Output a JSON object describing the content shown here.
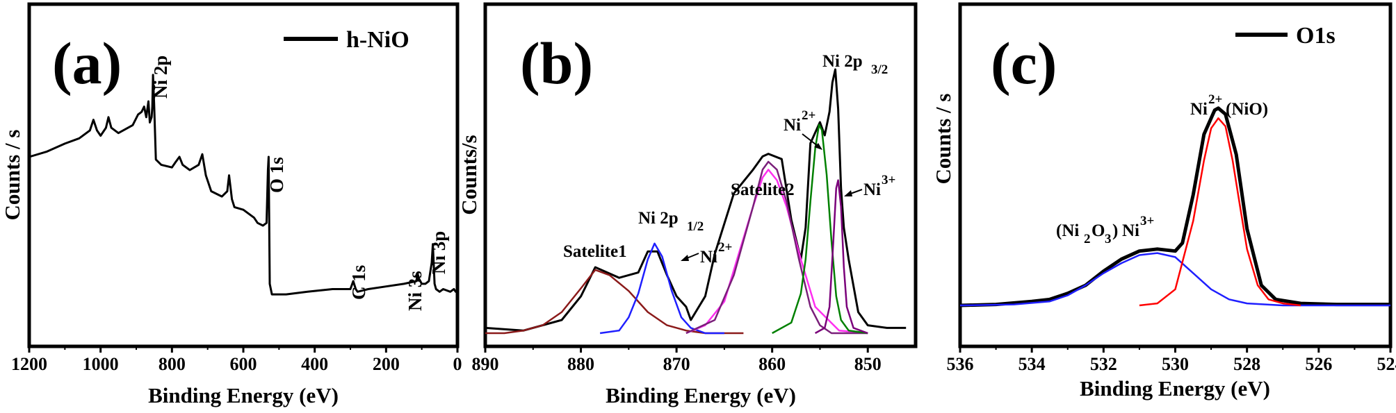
{
  "figure": {
    "panel_a": {
      "letter": "(a)",
      "legend": "h-NiO",
      "xlabel": "Binding Energy (eV)",
      "ylabel": "Counts / s",
      "xticks": [
        "1200",
        "1000",
        "800",
        "600",
        "400",
        "200",
        "0"
      ],
      "annotations": {
        "ni2p": "Ni 2p",
        "o1s": "O 1s",
        "c1s": "C 1s",
        "ni3s": "Ni 3s",
        "ni3p": "Ni 3p"
      }
    },
    "panel_b": {
      "letter": "(b)",
      "xlabel": "Binding Energy (eV)",
      "ylabel": "Counts/s",
      "xticks": [
        "890",
        "880",
        "870",
        "860",
        "850"
      ],
      "annotations": {
        "satelite1": "Satelite1",
        "satelite2": "Satelite2",
        "ni2p12": "Ni 2p",
        "ni2p12_sub": "1/2",
        "ni2p32": "Ni 2p",
        "ni2p32_sub": "3/2",
        "ni": "Ni",
        "sup2": "2+",
        "sup3": "3+"
      }
    },
    "panel_c": {
      "letter": "(c)",
      "legend": "O1s",
      "xlabel": "Binding Energy (eV)",
      "ylabel": "Counts / s",
      "xticks": [
        "536",
        "534",
        "532",
        "530",
        "528",
        "526",
        "524"
      ],
      "annotations": {
        "ni": "Ni",
        "sup2": "2+",
        "sup3": "3+",
        "nio": "(NiO)",
        "ni2o3_open": "(Ni",
        "ni2o3_sub": "2",
        "ni2o3_o": "O",
        "ni2o3_sub2": "3",
        "ni2o3_close": ")"
      }
    }
  },
  "chart_data": [
    {
      "type": "line",
      "panel": "(a)",
      "xlabel": "Binding Energy (eV)",
      "ylabel": "Counts / s",
      "xlim": [
        1200,
        0
      ],
      "ylim": [
        0,
        100
      ],
      "x_reversed": true,
      "series": [
        {
          "name": "h-NiO",
          "color": "#000000",
          "x": [
            1200,
            1150,
            1100,
            1060,
            1030,
            1020,
            1010,
            1000,
            985,
            978,
            970,
            950,
            910,
            895,
            885,
            878,
            872,
            866,
            862,
            857,
            855,
            853,
            850,
            845,
            830,
            800,
            790,
            779,
            770,
            750,
            725,
            715,
            705,
            690,
            660,
            645,
            640,
            632,
            625,
            600,
            570,
            560,
            545,
            535,
            531,
            529,
            526,
            520,
            480,
            420,
            350,
            300,
            292,
            285,
            280,
            250,
            200,
            150,
            115,
            112,
            108,
            100,
            90,
            80,
            72,
            69,
            67,
            64,
            60,
            50,
            40,
            20,
            10,
            5,
            0
          ],
          "y": [
            63,
            65,
            68,
            70,
            73,
            77,
            73,
            71,
            74,
            78,
            74,
            72,
            75,
            79,
            80,
            82,
            78,
            84,
            76,
            78,
            82,
            94,
            83,
            62,
            60,
            59,
            61,
            63,
            60,
            58,
            60,
            64,
            56,
            50,
            48,
            50,
            56,
            47,
            44,
            43,
            40,
            38,
            37,
            38,
            58,
            63,
            15,
            11,
            11,
            12,
            13,
            13,
            16,
            13,
            12,
            13,
            14,
            15,
            16,
            19,
            17,
            15,
            15,
            16,
            23,
            30,
            24,
            15,
            13,
            12,
            13,
            12,
            13,
            12,
            12
          ]
        }
      ]
    },
    {
      "type": "line",
      "panel": "(b)",
      "xlabel": "Binding Energy (eV)",
      "ylabel": "Counts/s",
      "xlim": [
        890,
        845
      ],
      "ylim": [
        0,
        100
      ],
      "x_reversed": true,
      "series": [
        {
          "color": "#000000",
          "x": [
            890,
            886,
            882,
            880,
            878.5,
            876,
            874,
            873,
            872,
            871,
            870,
            869,
            868.5,
            867,
            866,
            864,
            862,
            861,
            860.4,
            859,
            858,
            857,
            856.5,
            856,
            855,
            854.5,
            854,
            853.7,
            853.4,
            853.1,
            852.8,
            852.5,
            852,
            851,
            850,
            848,
            846
          ],
          "y": [
            2,
            1,
            5,
            14,
            25,
            21,
            23,
            31,
            31,
            22,
            14,
            10,
            5,
            14,
            30,
            53,
            62,
            67,
            68,
            66,
            43,
            28,
            40,
            72,
            80,
            75,
            84,
            95,
            100,
            85,
            55,
            40,
            28,
            8,
            3,
            2,
            2
          ]
        },
        {
          "color": "#8b1a1a",
          "x": [
            890,
            888,
            886,
            884,
            882,
            880,
            878.5,
            877,
            875,
            873,
            871,
            869,
            867,
            865,
            863
          ],
          "y": [
            0,
            0,
            1,
            3,
            8,
            17,
            24,
            22,
            16,
            8,
            3,
            1,
            0,
            0,
            0
          ]
        },
        {
          "color": "#1f1fff",
          "x": [
            878,
            876,
            875,
            874,
            873,
            872.3,
            871.5,
            870.5,
            869.5,
            868.5,
            867,
            865
          ],
          "y": [
            0,
            1,
            6,
            15,
            28,
            34,
            29,
            16,
            6,
            2,
            0,
            0
          ]
        },
        {
          "color": "#ff2ef0",
          "x": [
            869,
            867,
            865,
            863.5,
            862,
            861,
            860.4,
            859.5,
            858.5,
            857,
            855.5,
            853,
            850
          ],
          "y": [
            0,
            3,
            12,
            30,
            48,
            59,
            62,
            58,
            48,
            28,
            10,
            1,
            0
          ]
        },
        {
          "color": "#7a1f7a",
          "x": [
            869,
            866,
            864,
            862,
            861,
            860.4,
            859.5,
            858.5,
            857.2,
            856,
            855,
            853.8,
            852,
            850
          ],
          "y": [
            0,
            5,
            22,
            48,
            62,
            65,
            62,
            50,
            28,
            10,
            3,
            0,
            0,
            0
          ]
        },
        {
          "color": "#008000",
          "x": [
            860,
            858,
            857,
            856.5,
            856,
            855.5,
            855.1,
            854.8,
            854.3,
            853.8,
            853.3,
            852.8,
            852,
            850
          ],
          "y": [
            0,
            4,
            15,
            28,
            50,
            70,
            79,
            77,
            60,
            35,
            14,
            5,
            1,
            0
          ]
        },
        {
          "color": "#7a007a",
          "x": [
            855.5,
            854.5,
            854,
            853.6,
            853.3,
            853.1,
            852.8,
            852.5,
            852.2,
            851.5,
            850
          ],
          "y": [
            0,
            2,
            10,
            35,
            55,
            58,
            48,
            25,
            10,
            2,
            0
          ]
        }
      ]
    },
    {
      "type": "line",
      "panel": "(c)",
      "xlabel": "Binding Energy (eV)",
      "ylabel": "Counts / s",
      "xlim": [
        536,
        524
      ],
      "ylim": [
        0,
        100
      ],
      "x_reversed": true,
      "series": [
        {
          "name": "O1s",
          "color": "#000000",
          "x": [
            536,
            535,
            534,
            533.5,
            533,
            532.5,
            532,
            531.5,
            531,
            530.5,
            530,
            529.8,
            529.5,
            529.2,
            528.9,
            528.8,
            528.6,
            528.3,
            528,
            527.6,
            527.2,
            526.5,
            525.5,
            524
          ],
          "y": [
            0,
            0.5,
            2,
            3,
            6,
            10,
            17,
            23,
            27,
            28,
            27,
            31,
            55,
            85,
            97,
            98,
            95,
            75,
            38,
            10,
            3,
            1,
            0.5,
            0.5
          ]
        },
        {
          "color": "#1f1fff",
          "x": [
            536,
            534.5,
            533.5,
            533,
            532.5,
            532,
            531.5,
            531,
            530.5,
            530,
            529.5,
            529,
            528.5,
            528,
            527,
            526,
            524
          ],
          "y": [
            0,
            0.5,
            2,
            5,
            10,
            16,
            21,
            25,
            26,
            24,
            16,
            8,
            3,
            1,
            0,
            0,
            0
          ]
        },
        {
          "color": "#ff0000",
          "x": [
            531,
            530.5,
            530,
            529.5,
            529.2,
            529,
            528.8,
            528.6,
            528.4,
            528.2,
            528,
            527.7,
            527.4,
            527,
            526.5
          ],
          "y": [
            0,
            1,
            8,
            42,
            72,
            88,
            93,
            89,
            72,
            50,
            28,
            10,
            3,
            1,
            0
          ]
        }
      ]
    }
  ]
}
